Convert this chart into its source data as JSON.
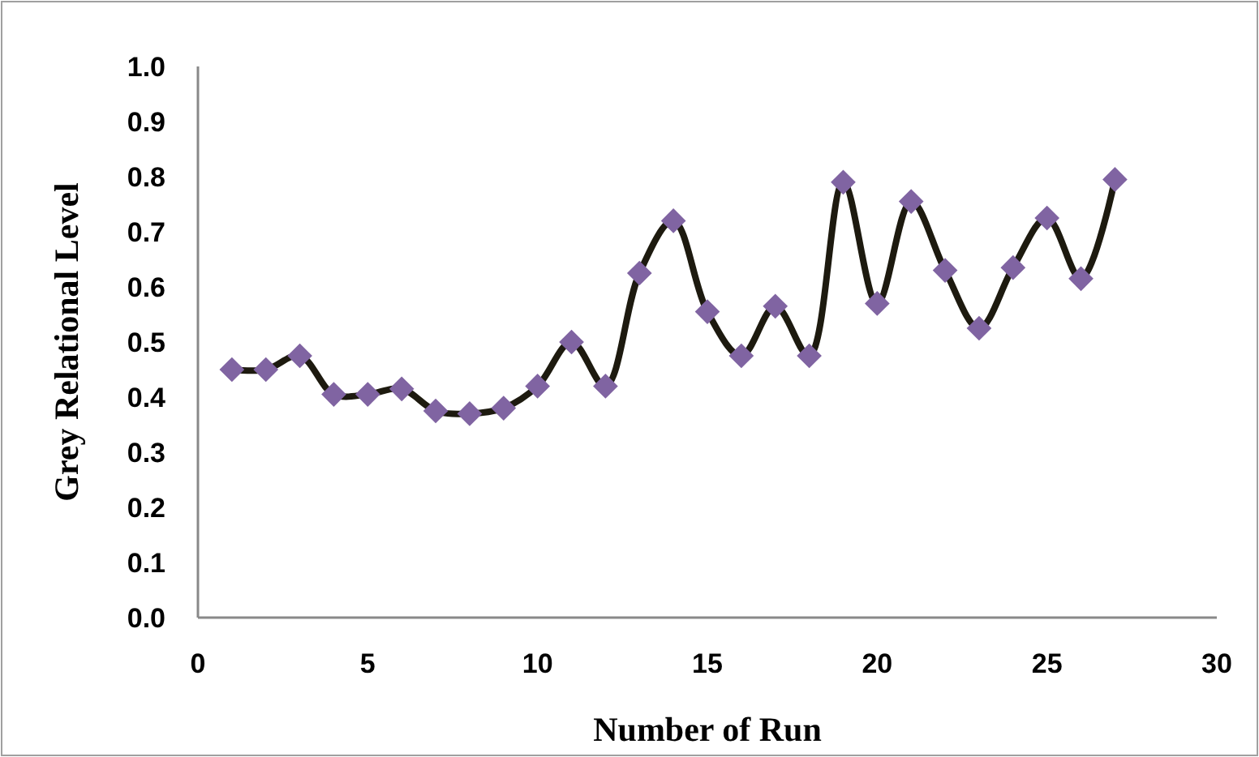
{
  "chart_data": {
    "type": "line",
    "xlabel": "Number of Run",
    "ylabel": "Grey Relational Level",
    "x": [
      1,
      2,
      3,
      4,
      5,
      6,
      7,
      8,
      9,
      10,
      11,
      12,
      13,
      14,
      15,
      16,
      17,
      18,
      19,
      20,
      21,
      22,
      23,
      24,
      25,
      26,
      27
    ],
    "series": [
      {
        "color": "#1d1a0f",
        "colors": [
          "#8064a2",
          "#8064a2",
          "#8064a2",
          "#8064a2",
          "#8064a2",
          "#8064a2",
          "#8064a2",
          "#8064a2",
          "#8064a2",
          "#8064a2",
          "#8064a2",
          "#8064a2",
          "#8064a2",
          "#8064a2",
          "#8064a2",
          "#8064a2",
          "#8064a2",
          "#8064a2",
          "#8064a2",
          "#8064a2",
          "#8064a2",
          "#8064a2",
          "#8064a2",
          "#8064a2",
          "#8064a2",
          "#8064a2",
          "#8064a2"
        ],
        "values": [
          0.45,
          0.45,
          0.475,
          0.405,
          0.405,
          0.415,
          0.375,
          0.37,
          0.38,
          0.42,
          0.5,
          0.42,
          0.625,
          0.72,
          0.555,
          0.475,
          0.565,
          0.475,
          0.79,
          0.57,
          0.755,
          0.63,
          0.525,
          0.635,
          0.725,
          0.615,
          0.795
        ]
      }
    ],
    "xlim": [
      0,
      30
    ],
    "xticks": [
      0,
      5,
      10,
      15,
      20,
      25,
      30
    ],
    "ylim": [
      0,
      1
    ],
    "yticks": [
      {
        "value": 0,
        "label": "0.0"
      },
      {
        "value": 0.1,
        "label": "0.1"
      },
      {
        "value": 0.2,
        "label": "0.2"
      },
      {
        "value": 0.3,
        "label": "0.3"
      },
      {
        "value": 0.4,
        "label": "0.4"
      },
      {
        "value": 0.5,
        "label": "0.5"
      },
      {
        "value": 0.6,
        "label": "0.6"
      },
      {
        "value": 0.7,
        "label": "0.7"
      },
      {
        "value": 0.8,
        "label": "0.8"
      },
      {
        "value": 0.9,
        "label": "0.9"
      },
      {
        "value": 1,
        "label": "1.0"
      }
    ],
    "grid": false,
    "marker": "diamond",
    "line_style": "solid"
  }
}
